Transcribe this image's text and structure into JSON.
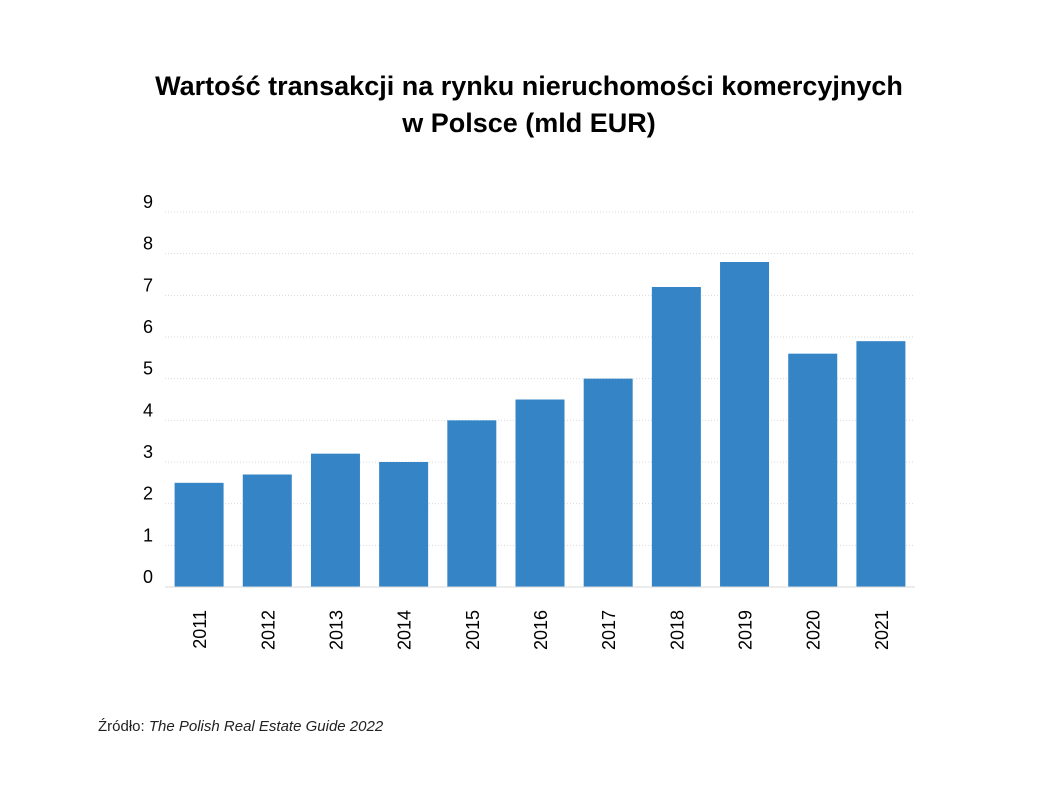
{
  "chart_data": {
    "type": "bar",
    "title_line1": "Wartość transakcji na rynku nieruchomości komercyjnych",
    "title_line2": "w Polsce (mld EUR)",
    "categories": [
      "2011",
      "2012",
      "2013",
      "2014",
      "2015",
      "2016",
      "2017",
      "2018",
      "2019",
      "2020",
      "2021"
    ],
    "values": [
      2.5,
      2.7,
      3.2,
      3.0,
      4.0,
      4.5,
      5.0,
      7.2,
      7.8,
      5.6,
      5.9
    ],
    "y_ticks": [
      "0",
      "1",
      "2",
      "3",
      "4",
      "5",
      "6",
      "7",
      "8",
      "9"
    ],
    "ylim": [
      0,
      9
    ],
    "xlabel": "",
    "ylabel": "",
    "grid": true,
    "bar_color": "#3585c6",
    "grid_color": "#d9d9d9",
    "axis_color": "#d9d9d9"
  },
  "source": {
    "label": "Źródło:",
    "name": "The Polish Real Estate Guide 2022"
  }
}
